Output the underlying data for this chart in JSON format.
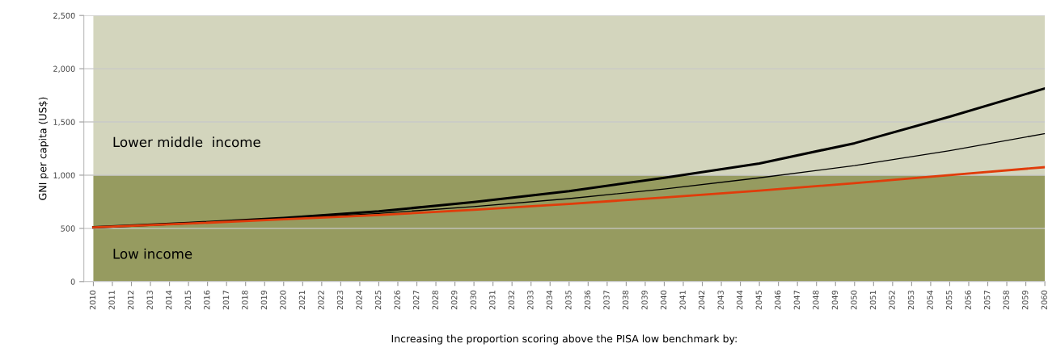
{
  "chart_data": {
    "type": "line",
    "xlabel": "Increasing the proportion scoring above the PISA low benchmark by:",
    "ylabel": "GNI per capita (US$)",
    "x": [
      2010,
      2015,
      2020,
      2025,
      2030,
      2035,
      2040,
      2045,
      2050,
      2055,
      2060
    ],
    "series": [
      {
        "color": "#000000",
        "values": [
          510,
          550,
          597,
          660,
          748,
          850,
          975,
          1110,
          1300,
          1550,
          1815
        ]
      },
      {
        "color": "#000000",
        "values": [
          510,
          548,
          590,
          640,
          705,
          780,
          870,
          975,
          1090,
          1230,
          1390
        ]
      },
      {
        "color": "#e03c0a",
        "values": [
          510,
          545,
          585,
          625,
          675,
          730,
          790,
          855,
          925,
          1000,
          1075
        ]
      }
    ],
    "xlim": [
      2009.5,
      2060
    ],
    "xticks": [
      2010,
      2011,
      2012,
      2013,
      2014,
      2015,
      2016,
      2017,
      2018,
      2019,
      2020,
      2021,
      2022,
      2023,
      2024,
      2025,
      2026,
      2027,
      2028,
      2029,
      2030,
      2031,
      2032,
      2033,
      2034,
      2035,
      2036,
      2037,
      2038,
      2039,
      2040,
      2041,
      2042,
      2043,
      2044,
      2045,
      2046,
      2047,
      2048,
      2049,
      2050,
      2051,
      2052,
      2053,
      2054,
      2055,
      2056,
      2057,
      2058,
      2059,
      2060
    ],
    "ylim": [
      0,
      2500
    ],
    "yticks": [
      {
        "value": 0,
        "label": "0"
      },
      {
        "value": 500,
        "label": "500"
      },
      {
        "value": 1000,
        "label": "1,000"
      },
      {
        "value": 1500,
        "label": "1,500"
      },
      {
        "value": 2000,
        "label": "2,000"
      },
      {
        "value": 2500,
        "label": "2,500"
      }
    ],
    "bands": [
      {
        "axis": "y",
        "from": 0,
        "to": 1000,
        "label": "Low income",
        "color": "#969b60"
      },
      {
        "axis": "y",
        "from": 1000,
        "to": 2500,
        "label": "Lower middle  income",
        "color": "#d3d5bd"
      }
    ],
    "grid": "y",
    "marker": "none",
    "line_style": "solid"
  }
}
